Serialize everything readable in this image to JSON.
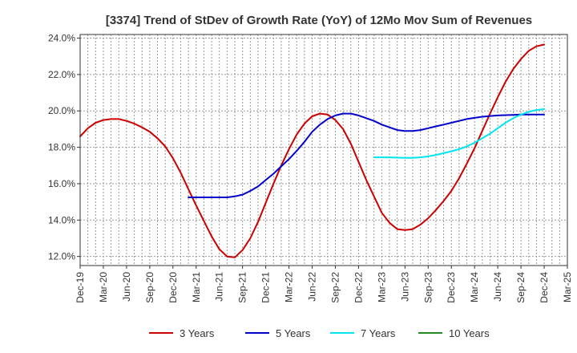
{
  "chart_data": {
    "type": "line",
    "title": "[3374]  Trend of StDev of Growth Rate (YoY) of 12Mo Mov Sum of Revenues",
    "xlabel": "",
    "ylabel": "",
    "x_ticks": [
      "Dec-19",
      "Mar-20",
      "Jun-20",
      "Sep-20",
      "Dec-20",
      "Mar-21",
      "Jun-21",
      "Sep-21",
      "Dec-21",
      "Mar-22",
      "Jun-22",
      "Sep-22",
      "Dec-22",
      "Mar-23",
      "Jun-23",
      "Sep-23",
      "Dec-23",
      "Mar-24",
      "Jun-24",
      "Sep-24",
      "Dec-24",
      "Mar-25"
    ],
    "y_ticks": [
      "12.0%",
      "14.0%",
      "16.0%",
      "18.0%",
      "20.0%",
      "22.0%",
      "24.0%"
    ],
    "ylim": [
      11.5,
      24.2
    ],
    "grid": true,
    "legend_position": "bottom",
    "series": [
      {
        "name": "3 Years",
        "color": "#cc0000",
        "x": [
          0,
          1,
          2,
          3,
          4,
          5,
          6,
          7,
          8,
          9,
          10,
          11,
          12,
          13,
          14,
          15,
          16,
          17,
          18,
          19,
          20,
          21,
          22,
          23,
          24,
          25,
          26,
          27,
          28,
          29,
          30,
          31,
          32,
          33,
          34,
          35,
          36,
          37,
          38,
          39,
          40,
          41,
          42,
          43,
          44,
          45,
          46,
          47,
          48,
          49,
          50,
          51,
          52,
          53,
          54,
          55,
          56,
          57,
          58,
          59,
          60
        ],
        "values": [
          18.6,
          19.05,
          19.35,
          19.5,
          19.55,
          19.55,
          19.45,
          19.3,
          19.1,
          18.85,
          18.5,
          18.05,
          17.4,
          16.6,
          15.7,
          14.8,
          13.95,
          13.1,
          12.4,
          12.0,
          11.95,
          12.35,
          13.0,
          13.9,
          14.95,
          16.0,
          17.0,
          17.9,
          18.7,
          19.3,
          19.7,
          19.85,
          19.8,
          19.5,
          19.0,
          18.2,
          17.2,
          16.2,
          15.3,
          14.4,
          13.85,
          13.5,
          13.45,
          13.5,
          13.75,
          14.1,
          14.55,
          15.05,
          15.6,
          16.3,
          17.1,
          17.95,
          18.9,
          19.85,
          20.75,
          21.6,
          22.3,
          22.85,
          23.3,
          23.55,
          23.65
        ]
      },
      {
        "name": "5 Years",
        "color": "#0000cc",
        "x": [
          14,
          15,
          16,
          17,
          18,
          19,
          20,
          21,
          22,
          23,
          24,
          25,
          26,
          27,
          28,
          29,
          30,
          31,
          32,
          33,
          34,
          35,
          36,
          37,
          38,
          39,
          40,
          41,
          42,
          43,
          44,
          45,
          46,
          47,
          48,
          49,
          50,
          51,
          52,
          53,
          54,
          55,
          56,
          57,
          58,
          59,
          60
        ],
        "values": [
          15.25,
          15.25,
          15.25,
          15.25,
          15.25,
          15.25,
          15.3,
          15.4,
          15.6,
          15.85,
          16.2,
          16.55,
          16.95,
          17.35,
          17.8,
          18.3,
          18.85,
          19.25,
          19.55,
          19.75,
          19.85,
          19.85,
          19.75,
          19.6,
          19.45,
          19.25,
          19.1,
          18.95,
          18.9,
          18.9,
          18.95,
          19.05,
          19.15,
          19.25,
          19.35,
          19.45,
          19.55,
          19.62,
          19.68,
          19.72,
          19.75,
          19.77,
          19.78,
          19.8,
          19.8,
          19.8,
          19.8
        ]
      },
      {
        "name": "7 Years",
        "color": "#00e5ee",
        "x": [
          38,
          39,
          40,
          41,
          42,
          43,
          44,
          45,
          46,
          47,
          48,
          49,
          50,
          51,
          52,
          53,
          54,
          55,
          56,
          57,
          58,
          59,
          60
        ],
        "values": [
          17.45,
          17.45,
          17.45,
          17.43,
          17.42,
          17.42,
          17.45,
          17.5,
          17.58,
          17.68,
          17.78,
          17.9,
          18.05,
          18.25,
          18.5,
          18.75,
          19.05,
          19.35,
          19.6,
          19.8,
          19.95,
          20.05,
          20.1
        ]
      },
      {
        "name": "10 Years",
        "color": "#228b22",
        "x": [],
        "values": []
      }
    ]
  }
}
